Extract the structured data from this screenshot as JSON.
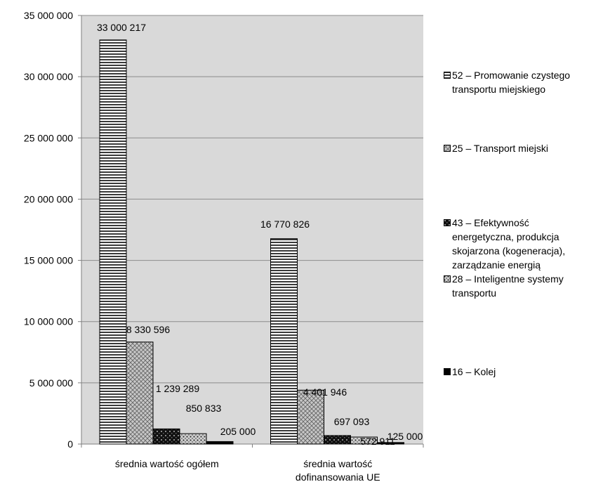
{
  "chart_data": {
    "type": "bar",
    "categories": [
      "średnia wartość ogółem",
      "średnia wartość dofinansowania UE"
    ],
    "series": [
      {
        "name": "52 – Promowanie czystego transportu miejskiego",
        "values": [
          33000217,
          16770826
        ],
        "labels": [
          "33 000 217",
          "16 770 826"
        ]
      },
      {
        "name": "25 – Transport miejski",
        "values": [
          8330596,
          4401946
        ],
        "labels": [
          "8 330 596",
          "4 401 946"
        ]
      },
      {
        "name": "43 – Efektywność energetyczna, produkcja skojarzona (kogeneracja), zarządzanie energią",
        "values": [
          1239289,
          697093
        ],
        "labels": [
          "1 239 289",
          "697 093"
        ]
      },
      {
        "name": "28 – Inteligentne systemy transportu",
        "values": [
          850833,
          572911
        ],
        "labels": [
          "850 833",
          "572 911"
        ]
      },
      {
        "name": "16 – Kolej",
        "values": [
          205000,
          125000
        ],
        "labels": [
          "205 000",
          "125 000"
        ]
      }
    ],
    "ylim": [
      0,
      35000000
    ],
    "yticks": [
      0,
      5000000,
      10000000,
      15000000,
      20000000,
      25000000,
      30000000,
      35000000
    ],
    "ytick_labels": [
      "0",
      "5 000 000",
      "10 000 000",
      "15 000 000",
      "20 000 000",
      "25 000 000",
      "30 000 000",
      "35 000 000"
    ],
    "grid": true,
    "legend": "right",
    "plot_background": "#d9d9d9"
  }
}
